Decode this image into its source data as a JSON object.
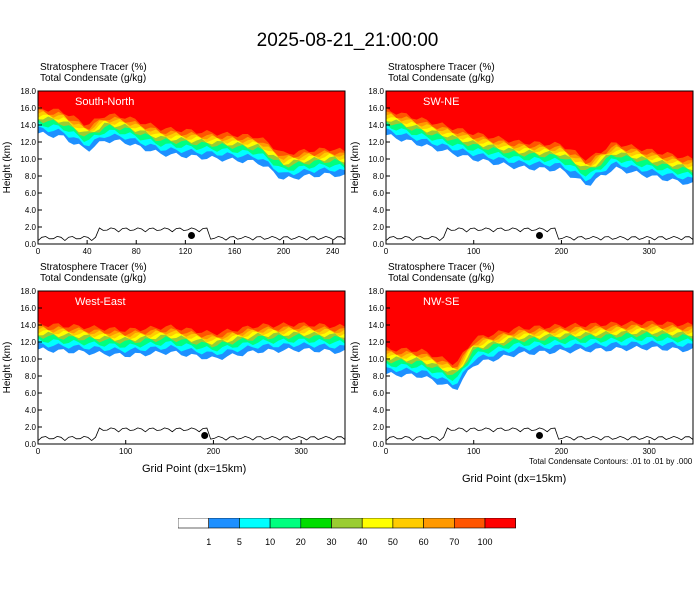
{
  "title": "2025-08-21_21:00:00",
  "panel_labels": {
    "tracer": "Stratosphere Tracer   (%)",
    "condensate": "Total Condensate   (g/kg)"
  },
  "ylabel": "Height (km)",
  "xlabel": "Grid Point (dx=15km)",
  "footnote": "Total Condensate Contours: .01 to .01 by .000",
  "colorbar": {
    "colors": [
      "#ffffff",
      "#1e90ff",
      "#00ffff",
      "#00ff7f",
      "#00dd00",
      "#9acd32",
      "#ffff00",
      "#ffcc00",
      "#ff9900",
      "#ff5500",
      "#ff0000"
    ],
    "labels": [
      "1",
      "5",
      "10",
      "20",
      "30",
      "40",
      "50",
      "60",
      "70",
      "100"
    ]
  },
  "chart_data": [
    {
      "type": "heatmap",
      "name": "South-North",
      "xlabel": "",
      "ylabel": "Height (km)",
      "xlim": [
        0,
        250
      ],
      "ylim": [
        0,
        18
      ],
      "xticks": [
        "0",
        "40",
        "80",
        "120",
        "160",
        "200",
        "240"
      ],
      "yticks": [
        "0.0",
        "2.0",
        "4.0",
        "6.0",
        "8.0",
        "10.0",
        "12.0",
        "14.0",
        "16.0",
        "18.0"
      ],
      "tropopause_km": [
        [
          0,
          15.6
        ],
        [
          20,
          15.2
        ],
        [
          40,
          13.6
        ],
        [
          55,
          14.8
        ],
        [
          70,
          14.6
        ],
        [
          100,
          13.2
        ],
        [
          140,
          12.7
        ],
        [
          180,
          12.2
        ],
        [
          200,
          10.2
        ],
        [
          220,
          10.6
        ],
        [
          240,
          10.8
        ],
        [
          250,
          10.5
        ]
      ],
      "marker": {
        "x": 125,
        "y": 1.0
      }
    },
    {
      "type": "heatmap",
      "name": "SW-NE",
      "xlabel": "",
      "ylabel": "Height (km)",
      "xlim": [
        0,
        350
      ],
      "ylim": [
        0,
        18
      ],
      "xticks": [
        "0",
        "100",
        "200",
        "300"
      ],
      "yticks": [
        "0.0",
        "2.0",
        "4.0",
        "6.0",
        "8.0",
        "10.0",
        "12.0",
        "14.0",
        "16.0",
        "18.0"
      ],
      "tropopause_km": [
        [
          0,
          15.4
        ],
        [
          50,
          14.0
        ],
        [
          100,
          12.6
        ],
        [
          150,
          11.6
        ],
        [
          200,
          11.3
        ],
        [
          230,
          9.5
        ],
        [
          260,
          11.5
        ],
        [
          300,
          10.6
        ],
        [
          350,
          9.6
        ]
      ],
      "marker": {
        "x": 175,
        "y": 1.0
      }
    },
    {
      "type": "heatmap",
      "name": "West-East",
      "xlabel": "Grid Point (dx=15km)",
      "ylabel": "Height (km)",
      "xlim": [
        0,
        350
      ],
      "ylim": [
        0,
        18
      ],
      "xticks": [
        "0",
        "100",
        "200",
        "300"
      ],
      "yticks": [
        "0.0",
        "2.0",
        "4.0",
        "6.0",
        "8.0",
        "10.0",
        "12.0",
        "14.0",
        "16.0",
        "18.0"
      ],
      "tropopause_km": [
        [
          0,
          13.7
        ],
        [
          50,
          13.4
        ],
        [
          100,
          13.0
        ],
        [
          150,
          13.4
        ],
        [
          200,
          12.6
        ],
        [
          250,
          13.5
        ],
        [
          300,
          13.7
        ],
        [
          350,
          13.4
        ]
      ],
      "marker": {
        "x": 190,
        "y": 1.0
      }
    },
    {
      "type": "heatmap",
      "name": "NW-SE",
      "xlabel": "Grid Point (dx=15km)",
      "ylabel": "Height (km)",
      "xlim": [
        0,
        350
      ],
      "ylim": [
        0,
        18
      ],
      "xticks": [
        "0",
        "100",
        "200",
        "300"
      ],
      "yticks": [
        "0.0",
        "2.0",
        "4.0",
        "6.0",
        "8.0",
        "10.0",
        "12.0",
        "14.0",
        "16.0",
        "18.0"
      ],
      "tropopause_km": [
        [
          0,
          10.8
        ],
        [
          40,
          10.6
        ],
        [
          80,
          9.0
        ],
        [
          100,
          12.0
        ],
        [
          150,
          13.2
        ],
        [
          200,
          13.5
        ],
        [
          250,
          13.7
        ],
        [
          300,
          13.9
        ],
        [
          350,
          13.6
        ]
      ],
      "marker": {
        "x": 175,
        "y": 1.0
      }
    }
  ]
}
